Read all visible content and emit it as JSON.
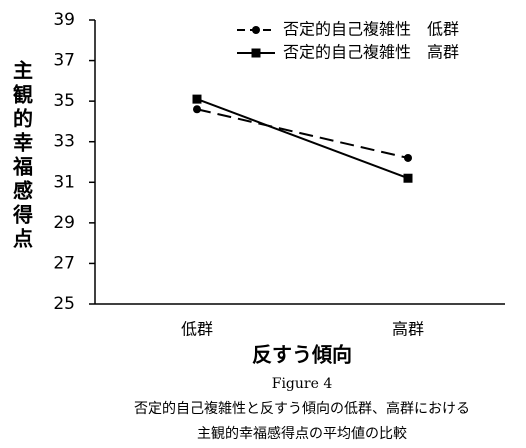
{
  "chart_data": {
    "type": "line",
    "y_label": "主観的幸福感得点",
    "x_label": "反すう傾向",
    "figure_label": "Figure 4",
    "caption": [
      "否定的自己複雑性と反すう傾向の低群、高群における",
      "主観的幸福感得点の平均値の比較"
    ],
    "categories": [
      "低群",
      "高群"
    ],
    "series": [
      {
        "name": "否定的自己複雑性　低群",
        "color": "#000000",
        "dashed": true,
        "marker": "circle",
        "values": [
          34.6,
          32.2
        ]
      },
      {
        "name": "否定的自己複雑性　高群",
        "color": "#000000",
        "dashed": false,
        "marker": "square",
        "values": [
          35.1,
          31.2
        ]
      }
    ],
    "ylim": [
      25,
      39
    ],
    "yticks": [
      25,
      27,
      29,
      31,
      33,
      35,
      37,
      39
    ],
    "grid": false,
    "legend": "top-right"
  }
}
